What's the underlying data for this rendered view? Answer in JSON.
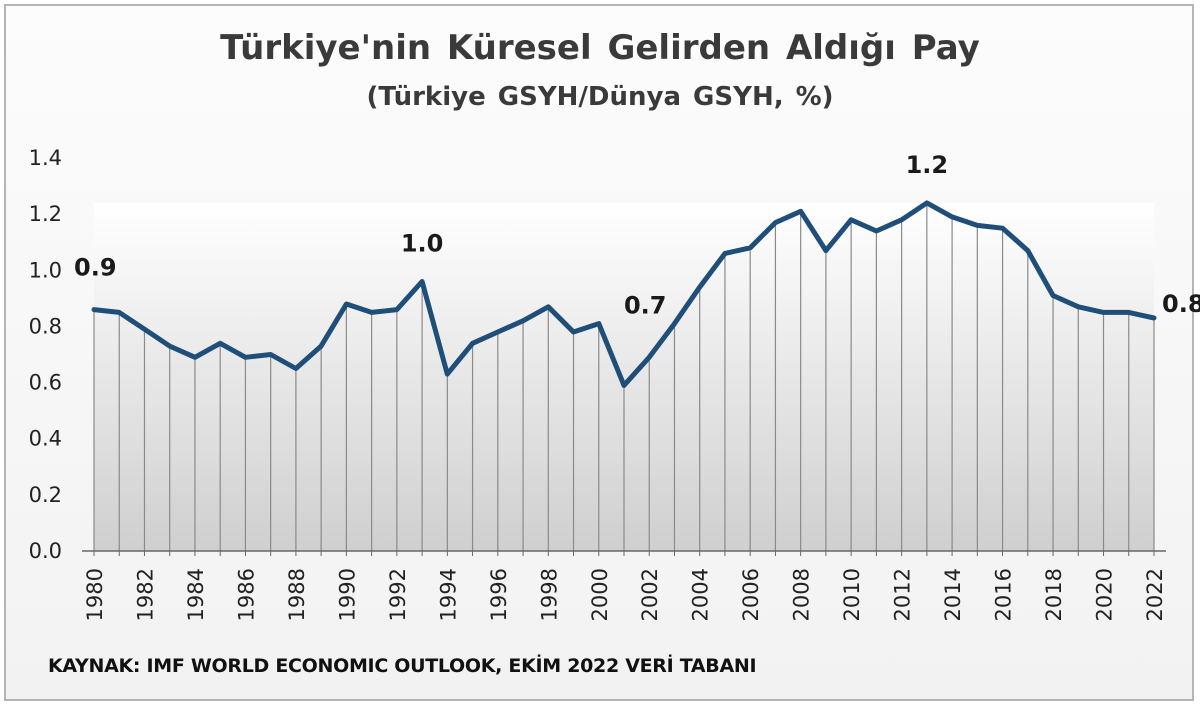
{
  "title": "Türkiye'nin Küresel Gelirden Aldığı Pay",
  "subtitle": "(Türkiye GSYH/Dünya GSYH, %)",
  "source": "KAYNAK: IMF WORLD ECONOMIC OUTLOOK, EKİM 2022 VERİ TABANI",
  "colors": {
    "line": "#1f4e79",
    "area_top": "#ffffff",
    "area_bottom": "#cfcfcf",
    "droplines": "#8a8a8a"
  },
  "chart_data": {
    "type": "line",
    "title": "Türkiye'nin Küresel Gelirden Aldığı Pay",
    "subtitle": "(Türkiye GSYH/Dünya GSYH, %)",
    "xlabel": "",
    "ylabel": "",
    "ylim": [
      0,
      1.4
    ],
    "yticks": [
      "0.0",
      "0.2",
      "0.4",
      "0.6",
      "0.8",
      "1.0",
      "1.2",
      "1.4"
    ],
    "grid": false,
    "legend": "none",
    "xtick_labels": [
      "1980",
      "1982",
      "1984",
      "1986",
      "1988",
      "1990",
      "1992",
      "1994",
      "1996",
      "1998",
      "2000",
      "2002",
      "2004",
      "2006",
      "2008",
      "2010",
      "2012",
      "2014",
      "2016",
      "2018",
      "2020",
      "2022"
    ],
    "series": [
      {
        "x": [
          1980,
          1981,
          1982,
          1983,
          1984,
          1985,
          1986,
          1987,
          1988,
          1989,
          1990,
          1991,
          1992,
          1993,
          1994,
          1995,
          1996,
          1997,
          1998,
          1999,
          2000,
          2001,
          2002,
          2003,
          2004,
          2005,
          2006,
          2007,
          2008,
          2009,
          2010,
          2011,
          2012,
          2013,
          2014,
          2015,
          2016,
          2017,
          2018,
          2019,
          2020,
          2021,
          2022
        ],
        "values": [
          0.86,
          0.85,
          0.79,
          0.73,
          0.69,
          0.74,
          0.69,
          0.7,
          0.65,
          0.73,
          0.88,
          0.85,
          0.86,
          0.96,
          0.63,
          0.74,
          0.78,
          0.82,
          0.87,
          0.78,
          0.81,
          0.59,
          0.69,
          0.81,
          0.94,
          1.06,
          1.08,
          1.17,
          1.21,
          1.07,
          1.18,
          1.14,
          1.18,
          1.24,
          1.19,
          1.16,
          1.15,
          1.07,
          0.91,
          0.87,
          0.85,
          0.85,
          0.83
        ]
      }
    ],
    "annotations": [
      {
        "x": 1980,
        "text": "0.9"
      },
      {
        "x": 1993,
        "text": "1.0"
      },
      {
        "x": 2002,
        "text": "0.7"
      },
      {
        "x": 2013,
        "text": "1.2"
      },
      {
        "x": 2022,
        "text": "0.8"
      }
    ]
  }
}
